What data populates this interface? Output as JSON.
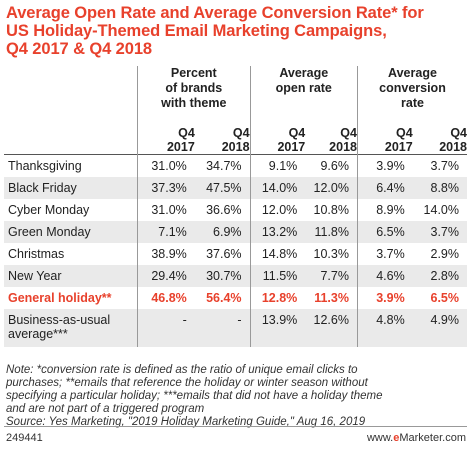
{
  "title_lines": [
    "Average Open Rate and Average Conversion Rate* for",
    "US Holiday-Themed Email Marketing Campaigns,",
    "Q4 2017 & Q4 2018"
  ],
  "chart_data": {
    "type": "table",
    "column_groups": [
      {
        "label_lines": [
          "Percent",
          "of brands",
          "with theme"
        ]
      },
      {
        "label_lines": [
          "Average",
          "open rate"
        ]
      },
      {
        "label_lines": [
          "Average",
          "conversion",
          "rate"
        ]
      }
    ],
    "subcolumns": [
      [
        "Q4",
        "2017"
      ],
      [
        "Q4",
        "2018"
      ],
      [
        "Q4",
        "2017"
      ],
      [
        "Q4",
        "2018"
      ],
      [
        "Q4",
        "2017"
      ],
      [
        "Q4",
        "2018"
      ]
    ],
    "rows": [
      {
        "label": "Thanksgiving",
        "values": [
          "31.0%",
          "34.7%",
          "9.1%",
          "9.6%",
          "3.9%",
          "3.7%"
        ]
      },
      {
        "label": "Black Friday",
        "values": [
          "37.3%",
          "47.5%",
          "14.0%",
          "12.0%",
          "6.4%",
          "8.8%"
        ]
      },
      {
        "label": "Cyber Monday",
        "values": [
          "31.0%",
          "36.6%",
          "12.0%",
          "10.8%",
          "8.9%",
          "14.0%"
        ]
      },
      {
        "label": "Green Monday",
        "values": [
          "7.1%",
          "6.9%",
          "13.2%",
          "11.8%",
          "6.5%",
          "3.7%"
        ]
      },
      {
        "label": "Christmas",
        "values": [
          "38.9%",
          "37.6%",
          "14.8%",
          "10.3%",
          "3.7%",
          "2.9%"
        ]
      },
      {
        "label": "New Year",
        "values": [
          "29.4%",
          "30.7%",
          "11.5%",
          "7.7%",
          "4.6%",
          "2.8%"
        ]
      },
      {
        "label": "General holiday**",
        "values": [
          "46.8%",
          "56.4%",
          "12.8%",
          "11.3%",
          "3.9%",
          "6.5%"
        ]
      }
    ],
    "bau_row": {
      "label_lines": [
        "Business-as-usual",
        "average***"
      ],
      "values": [
        "-",
        "-",
        "13.9%",
        "12.6%",
        "4.8%",
        "4.9%"
      ]
    }
  },
  "note_lines": [
    "Note: *conversion rate is defined as the ratio of unique email clicks to",
    "purchases; **emails that reference the holiday or winter season without",
    "specifying a particular holiday; ***emails that did not have a holiday theme",
    "and are not part of a triggered program",
    "Source: Yes Marketing, \"2019 Holiday Marketing Guide,\" Aug 16, 2019"
  ],
  "footer": {
    "id": "249441",
    "brand_prefix": "www.",
    "brand_e": "e",
    "brand_rest": "Marketer.com"
  },
  "colors": {
    "accent": "#e8412c",
    "stripe": "#eaeaea"
  }
}
